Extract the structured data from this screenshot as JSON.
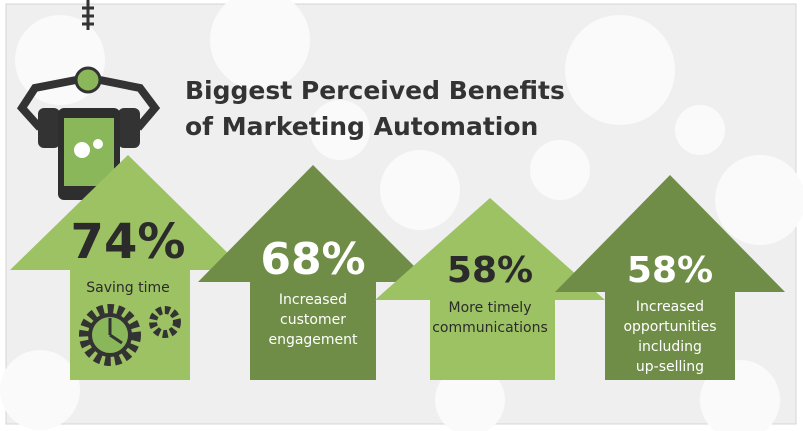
{
  "title": [
    "Biggest Perceived Benefits",
    "of Marketing Automation"
  ],
  "items": [
    {
      "value": "74%",
      "label": [
        "Saving time"
      ]
    },
    {
      "value": "68%",
      "label": [
        "Increased",
        "customer",
        "engagement"
      ]
    },
    {
      "value": "58%",
      "label": [
        "More timely",
        "communications"
      ]
    },
    {
      "value": "58%",
      "label": [
        "Increased",
        "opportunities",
        "including",
        "up-selling"
      ]
    }
  ]
}
